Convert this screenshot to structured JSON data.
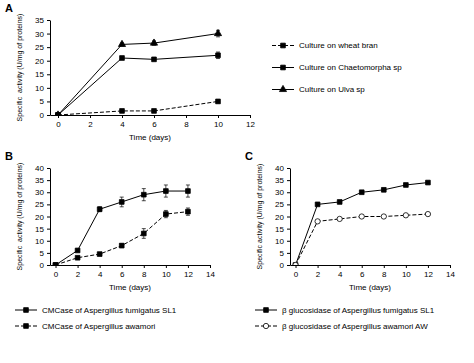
{
  "chart_data": [
    {
      "type": "line",
      "title": "A",
      "xlabel": "Time (days)",
      "ylabel": "Specific  activity (U/mg of proteins)",
      "x": [
        0,
        4,
        6,
        10
      ],
      "series": [
        {
          "name": "Culture on wheat bran",
          "values": [
            0,
            1.5,
            1.5,
            5.0
          ],
          "errors": [
            0,
            0.3,
            0.3,
            0.6
          ],
          "line_style": "dashed",
          "marker": "square",
          "color": "black"
        },
        {
          "name": "Culture on Chaetomorpha sp",
          "values": [
            0,
            21,
            20.5,
            22
          ],
          "errors": [
            0,
            0.5,
            0.5,
            1.2
          ],
          "line_style": "solid",
          "marker": "square",
          "color": "black"
        },
        {
          "name": "Culture on Ulva sp",
          "values": [
            0,
            26,
            26.5,
            30
          ],
          "errors": [
            0,
            0.5,
            0.8,
            1.2
          ],
          "line_style": "solid",
          "marker": "triangle",
          "color": "black"
        }
      ],
      "xlim": [
        -0.5,
        12
      ],
      "ylim": [
        0,
        35
      ],
      "xticks": [
        0,
        2,
        4,
        6,
        8,
        10,
        12
      ],
      "yticks": [
        0,
        5,
        10,
        15,
        20,
        25,
        30,
        35
      ],
      "grid": false,
      "legend": "right"
    },
    {
      "type": "line",
      "title": "B",
      "xlabel": "Time (days)",
      "ylabel": "Specific  activity (U/mg of proteins)",
      "x": [
        0,
        2,
        4,
        6,
        8,
        10,
        12
      ],
      "series": [
        {
          "name": "CMCase of Aspergillus fumigatus SL1",
          "values": [
            0,
            6,
            23,
            26,
            29,
            30.5,
            30.5
          ],
          "errors": [
            0,
            0.5,
            1.0,
            2.0,
            2.5,
            2.5,
            2.5
          ],
          "line_style": "solid",
          "marker": "square",
          "color": "black"
        },
        {
          "name": "CMCase of Aspergillus awamori",
          "values": [
            0,
            3,
            4.5,
            8,
            13,
            21,
            22
          ],
          "errors": [
            0,
            0.3,
            0.5,
            0.8,
            2.0,
            1.5,
            1.5
          ],
          "line_style": "dashed",
          "marker": "square",
          "color": "black"
        }
      ],
      "xlim": [
        -0.5,
        14
      ],
      "ylim": [
        0,
        40
      ],
      "xticks": [
        0,
        2,
        4,
        6,
        8,
        10,
        12,
        14
      ],
      "yticks": [
        0,
        5,
        10,
        15,
        20,
        25,
        30,
        35,
        40
      ],
      "grid": false,
      "legend": "bottom"
    },
    {
      "type": "line",
      "title": "C",
      "xlabel": "Time (days)",
      "ylabel": "Specific activity (U/mg of proteins)",
      "x": [
        0,
        2,
        4,
        6,
        8,
        10,
        12
      ],
      "series": [
        {
          "name": "β glucosidase of Aspergillus fumigatus SL1",
          "values": [
            0,
            25,
            26,
            30,
            31,
            33,
            34
          ],
          "errors": [
            0,
            0.5,
            0.5,
            0.5,
            0.5,
            0.5,
            0.5
          ],
          "line_style": "solid",
          "marker": "square",
          "color": "black"
        },
        {
          "name": "β glucosidase of Aspergillus awamori AW",
          "values": [
            0,
            18,
            19,
            20,
            20,
            20.5,
            21
          ],
          "errors": [
            0,
            0.3,
            0.3,
            0.3,
            0.3,
            0.3,
            0.3
          ],
          "line_style": "dashed",
          "marker": "open-circle",
          "color": "black"
        }
      ],
      "xlim": [
        -0.5,
        14
      ],
      "ylim": [
        0,
        40
      ],
      "xticks": [
        0,
        2,
        4,
        6,
        8,
        10,
        12,
        14
      ],
      "yticks": [
        0,
        5,
        10,
        15,
        20,
        25,
        30,
        35,
        40
      ],
      "grid": false,
      "legend": "bottom"
    }
  ]
}
